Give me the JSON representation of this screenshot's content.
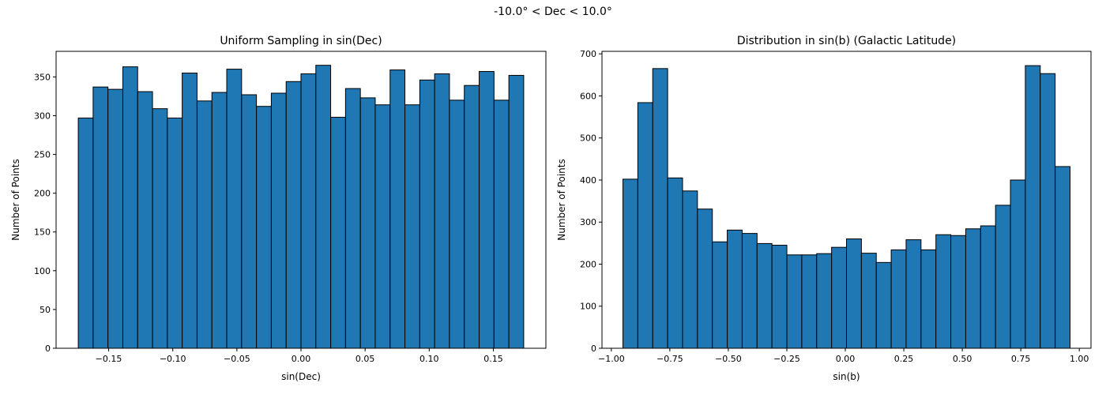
{
  "figure": {
    "suptitle": "-10.0° < Dec < 10.0°"
  },
  "chart_data": [
    {
      "type": "bar",
      "title": "Uniform Sampling in sin(Dec)",
      "xlabel": "sin(Dec)",
      "ylabel": "Number of Points",
      "bar_color": "#1f77b4",
      "edge_color": "#000000",
      "xlim": [
        -0.191,
        0.191
      ],
      "ylim": [
        0,
        383
      ],
      "bin_start": -0.1737,
      "bin_width": 0.01158,
      "values": [
        297,
        337,
        334,
        363,
        331,
        309,
        297,
        355,
        319,
        330,
        360,
        327,
        312,
        329,
        344,
        354,
        365,
        298,
        335,
        323,
        314,
        359,
        314,
        346,
        354,
        320,
        339,
        357,
        320,
        352
      ],
      "xticks": [
        -0.15,
        -0.1,
        -0.05,
        0.0,
        0.05,
        0.1,
        0.15
      ],
      "xtick_labels": [
        "−0.15",
        "−0.10",
        "−0.05",
        "0.00",
        "0.05",
        "0.10",
        "0.15"
      ],
      "yticks": [
        0,
        50,
        100,
        150,
        200,
        250,
        300,
        350
      ],
      "ytick_labels": [
        "0",
        "50",
        "100",
        "150",
        "200",
        "250",
        "300",
        "350"
      ]
    },
    {
      "type": "bar",
      "title": "Distribution in sin(b) (Galactic Latitude)",
      "xlabel": "sin(b)",
      "ylabel": "Number of Points",
      "bar_color": "#1f77b4",
      "edge_color": "#000000",
      "xlim": [
        -1.04,
        1.05
      ],
      "ylim": [
        0,
        706
      ],
      "bin_start": -0.9505,
      "bin_width": 0.0637,
      "values": [
        402,
        584,
        665,
        405,
        374,
        331,
        253,
        281,
        273,
        249,
        245,
        222,
        222,
        225,
        240,
        260,
        226,
        204,
        234,
        258,
        234,
        270,
        268,
        284,
        291,
        340,
        400,
        672,
        653,
        432
      ],
      "xticks": [
        -1.0,
        -0.75,
        -0.5,
        -0.25,
        0.0,
        0.25,
        0.5,
        0.75,
        1.0
      ],
      "xtick_labels": [
        "−1.00",
        "−0.75",
        "−0.50",
        "−0.25",
        "0.00",
        "0.25",
        "0.50",
        "0.75",
        "1.00"
      ],
      "yticks": [
        0,
        100,
        200,
        300,
        400,
        500,
        600,
        700
      ],
      "ytick_labels": [
        "0",
        "100",
        "200",
        "300",
        "400",
        "500",
        "600",
        "700"
      ]
    }
  ]
}
